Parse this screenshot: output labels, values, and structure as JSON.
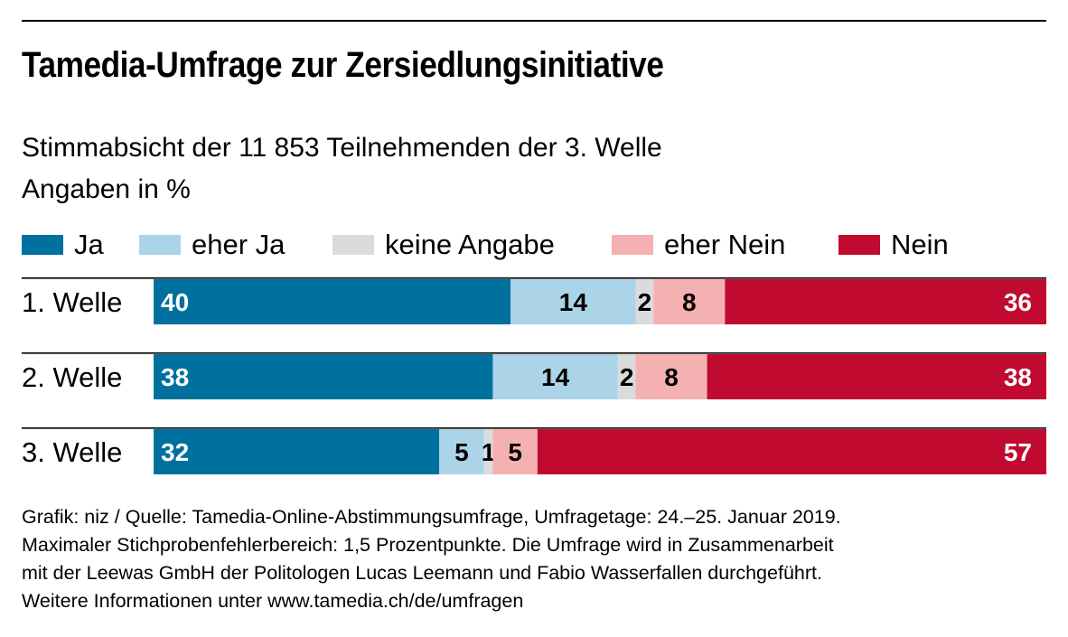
{
  "title": "Tamedia-Umfrage zur Zersiedlungsinitiative",
  "subtitle_line1": "Stimmabsicht der 11 853 Teilnehmenden der 3. Welle",
  "subtitle_line2": "Angaben in %",
  "colors": {
    "Ja": "#00709f",
    "eher Ja": "#acd4e8",
    "keine Angabe": "#d9dbdc",
    "eher Nein": "#f5b1b2",
    "Nein": "#c00a2f"
  },
  "chart_data": {
    "type": "bar",
    "orientation": "horizontal",
    "stacked": true,
    "title": "Tamedia-Umfrage zur Zersiedlungsinitiative",
    "categories": [
      "1. Welle",
      "2. Welle",
      "3. Welle"
    ],
    "series": [
      {
        "name": "Ja",
        "values": [
          40,
          38,
          32
        ]
      },
      {
        "name": "eher Ja",
        "values": [
          14,
          14,
          5
        ]
      },
      {
        "name": "keine Angabe",
        "values": [
          2,
          2,
          1
        ]
      },
      {
        "name": "eher Nein",
        "values": [
          8,
          8,
          5
        ]
      },
      {
        "name": "Nein",
        "values": [
          36,
          38,
          57
        ]
      }
    ],
    "xlim": [
      0,
      100
    ],
    "xlabel": "",
    "ylabel": "Angaben in %",
    "legend": "top"
  },
  "footnote": [
    "Grafik: niz / Quelle: Tamedia-Online-Abstimmungsumfrage, Umfragetage: 24.–25. Januar 2019.",
    "Maximaler Stichprobenfehlerbereich: 1,5 Prozentpunkte. Die Umfrage wird in Zusammenarbeit",
    "mit der Leewas GmbH der Politologen Lucas Leemann und Fabio Wasserfallen durchgeführt.",
    "Weitere Informationen unter www.tamedia.ch/de/umfragen"
  ]
}
